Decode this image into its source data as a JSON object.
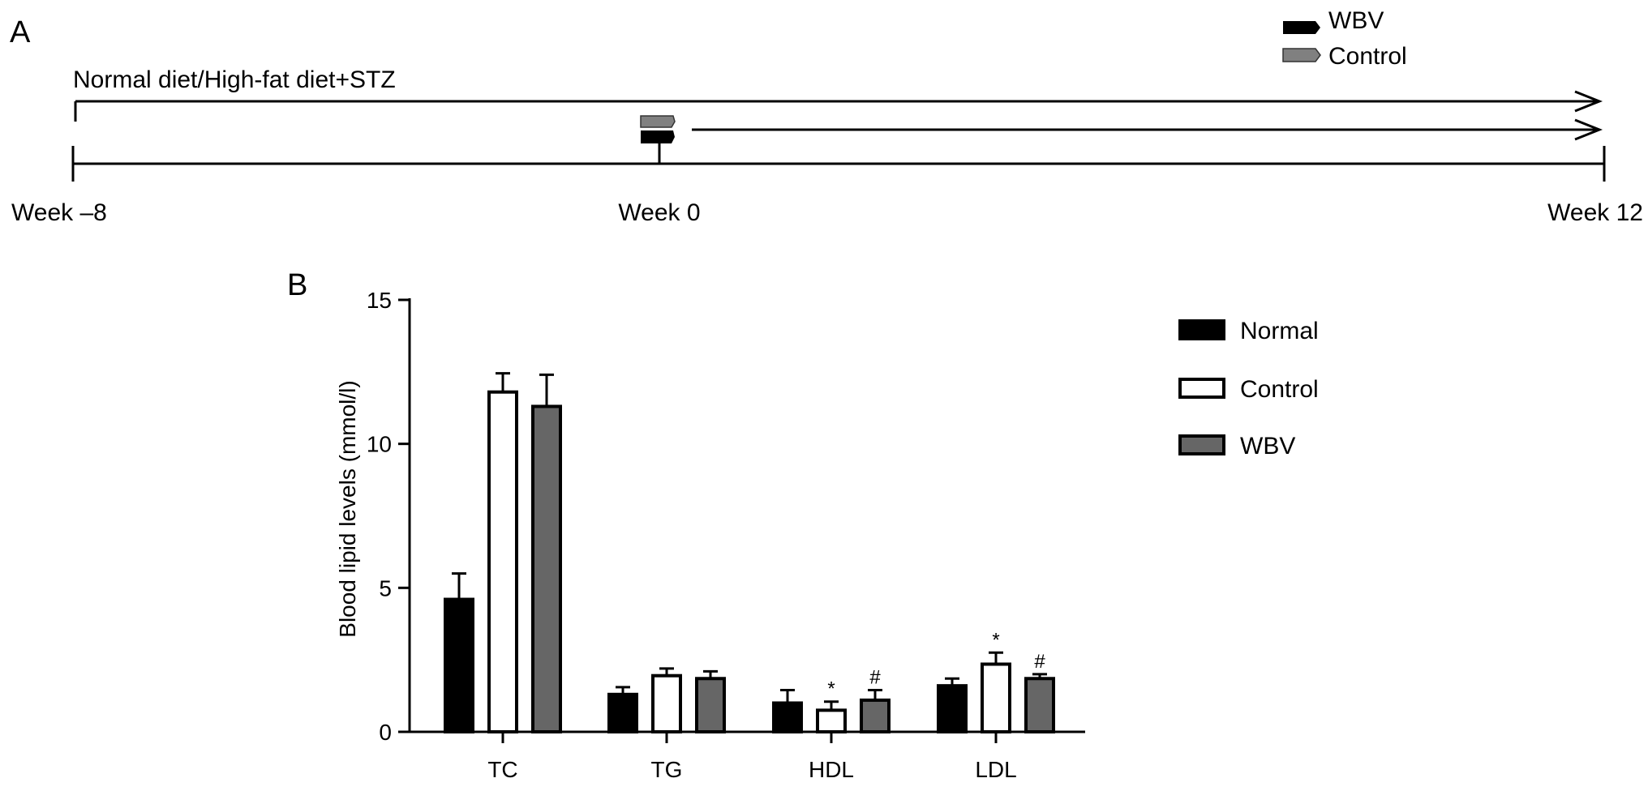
{
  "panel_a": {
    "letter": "A",
    "diet_label": "Normal diet/High-fat diet+STZ",
    "legend": [
      {
        "label": "WBV",
        "color": "#000000"
      },
      {
        "label": "Control",
        "color": "#808080"
      }
    ],
    "timeline": {
      "start_label": "Week –8",
      "mid_label": "Week 0",
      "end_label": "Week 12",
      "start_week": -8,
      "mid_week": 0,
      "end_week": 12
    }
  },
  "panel_b": {
    "letter": "B"
  },
  "chart_data": {
    "type": "bar",
    "title": "",
    "xlabel": "",
    "ylabel": "Blood lipid levels (mmol/l)",
    "ylim": [
      0,
      15
    ],
    "yticks": [
      0,
      5,
      10,
      15
    ],
    "categories": [
      "TC",
      "TG",
      "HDL",
      "LDL"
    ],
    "legend_position": "top-right",
    "series": [
      {
        "name": "Normal",
        "color": "#000000",
        "fill": "solid",
        "values": [
          4.6,
          1.3,
          1.0,
          1.6
        ],
        "errors": [
          0.9,
          0.25,
          0.45,
          0.25
        ],
        "annotations": [
          "",
          "",
          "",
          ""
        ]
      },
      {
        "name": "Control",
        "color": "#000000",
        "fill": "hollow",
        "values": [
          11.8,
          1.95,
          0.75,
          2.35
        ],
        "errors": [
          0.65,
          0.25,
          0.3,
          0.4
        ],
        "annotations": [
          "",
          "",
          "*",
          "*"
        ]
      },
      {
        "name": "WBV",
        "color": "#666666",
        "fill": "solid",
        "values": [
          11.3,
          1.85,
          1.1,
          1.85
        ],
        "errors": [
          1.1,
          0.25,
          0.35,
          0.15
        ],
        "annotations": [
          "",
          "",
          "#",
          "#"
        ]
      }
    ]
  }
}
